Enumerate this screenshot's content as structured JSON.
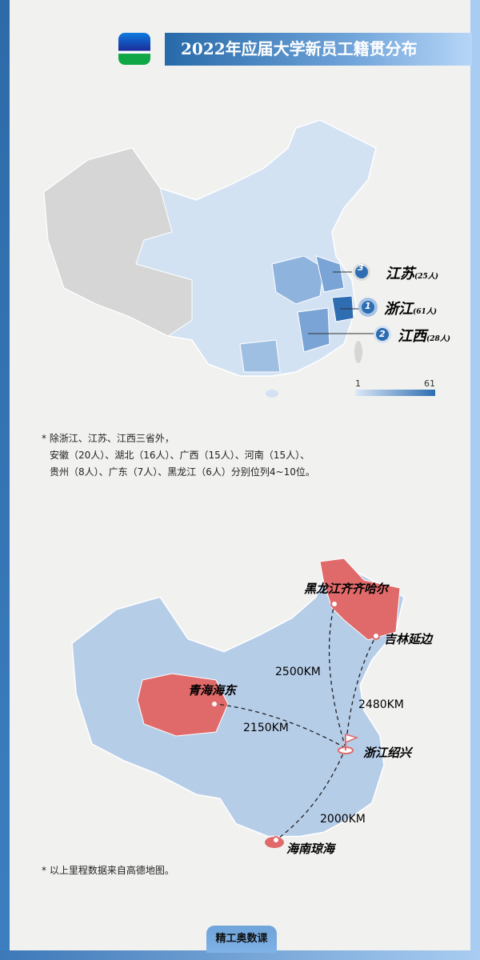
{
  "header": {
    "title": "2022年应届大学新员工籍贯分布"
  },
  "map1": {
    "rankings": [
      {
        "rank": "1",
        "province": "浙江",
        "count": "(61人)"
      },
      {
        "rank": "2",
        "province": "江西",
        "count": "(28人)"
      },
      {
        "rank": "3",
        "province": "江苏",
        "count": "(25人)"
      }
    ],
    "legend": {
      "min": "1",
      "max": "61",
      "color_min": "#dbe8f6",
      "color_max": "#2e6db2"
    },
    "no_data_color": "#d6d6d6"
  },
  "note1": {
    "star": "*",
    "line1": "除浙江、江苏、江西三省外，",
    "line2": "安徽（20人）、湖北（16人）、广西（15人）、河南（15人）、",
    "line3": "贵州（8人）、广东（7人）、黑龙江（6人）分别位列4~10位。"
  },
  "map2": {
    "origin": "浙江绍兴",
    "places": [
      "黑龙江齐齐哈尔",
      "吉林延边",
      "青海海东",
      "海南琼海"
    ],
    "distances": [
      "2500KM",
      "2480KM",
      "2150KM",
      "2000KM"
    ],
    "highlight_color": "#e06a6a",
    "base_color": "#b6cde8"
  },
  "note2": {
    "star": "*",
    "text": "以上里程数据来自高德地图。"
  },
  "footer": {
    "label": "精工奥数课"
  }
}
